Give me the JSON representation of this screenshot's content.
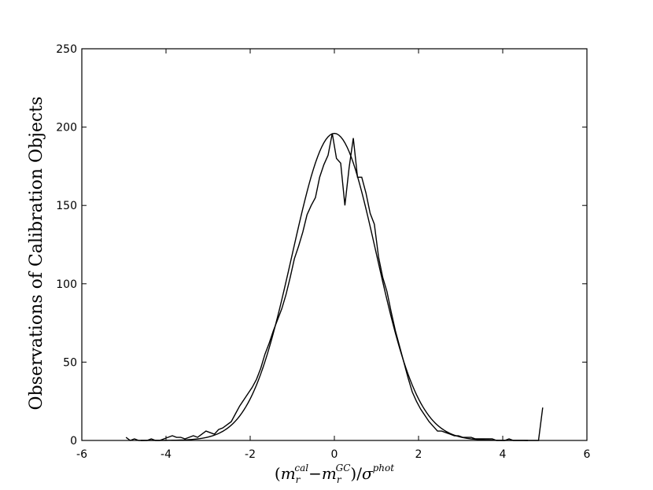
{
  "chart_data": {
    "type": "line",
    "title": "",
    "xlabel": "(m_r^cal − m_r^GC) / σ^phot",
    "xlabel_parts": {
      "open": "(",
      "m1": "m",
      "m1_sub": "r",
      "m1_sup": "cal",
      "minus": "−",
      "m2": "m",
      "m2_sub": "r",
      "m2_sup": "GC",
      "close": ")",
      "slash": "/",
      "sigma": "σ",
      "sigma_sup": "phot"
    },
    "ylabel": "Observations of Calibration Objects",
    "xlim": [
      -6,
      6
    ],
    "ylim": [
      0,
      250
    ],
    "xticks": [
      -6,
      -4,
      -2,
      0,
      2,
      4,
      6
    ],
    "xtick_labels": [
      "-6",
      "-4",
      "-2",
      "0",
      "2",
      "4",
      "6"
    ],
    "yticks": [
      0,
      50,
      100,
      150,
      200,
      250
    ],
    "ytick_labels": [
      "0",
      "50",
      "100",
      "150",
      "200",
      "250"
    ],
    "grid": false,
    "series": [
      {
        "kind": "histogram",
        "x": [
          -4.95,
          -4.85,
          -4.75,
          -4.65,
          -4.55,
          -4.45,
          -4.35,
          -4.25,
          -4.15,
          -4.05,
          -3.95,
          -3.85,
          -3.75,
          -3.65,
          -3.55,
          -3.45,
          -3.35,
          -3.25,
          -3.15,
          -3.05,
          -2.95,
          -2.85,
          -2.75,
          -2.65,
          -2.55,
          -2.45,
          -2.35,
          -2.25,
          -2.15,
          -2.05,
          -1.95,
          -1.85,
          -1.75,
          -1.65,
          -1.55,
          -1.45,
          -1.35,
          -1.25,
          -1.15,
          -1.05,
          -0.95,
          -0.85,
          -0.75,
          -0.65,
          -0.55,
          -0.45,
          -0.35,
          -0.25,
          -0.15,
          -0.05,
          0.05,
          0.15,
          0.25,
          0.35,
          0.45,
          0.55,
          0.65,
          0.75,
          0.85,
          0.95,
          1.05,
          1.15,
          1.25,
          1.35,
          1.45,
          1.55,
          1.65,
          1.75,
          1.85,
          1.95,
          2.05,
          2.15,
          2.25,
          2.35,
          2.45,
          2.55,
          2.65,
          2.75,
          2.85,
          2.95,
          3.05,
          3.15,
          3.25,
          3.35,
          3.45,
          3.55,
          3.65,
          3.75,
          3.85,
          3.95,
          4.05,
          4.15,
          4.25,
          4.35,
          4.45,
          4.55,
          4.65,
          4.75,
          4.85,
          4.95
        ],
        "y": [
          2,
          0,
          1,
          0,
          0,
          0,
          1,
          0,
          0,
          1,
          2,
          3,
          2,
          2,
          1,
          2,
          3,
          2,
          4,
          6,
          5,
          4,
          7,
          8,
          10,
          12,
          17,
          22,
          26,
          30,
          34,
          39,
          46,
          55,
          62,
          70,
          77,
          84,
          93,
          104,
          116,
          124,
          133,
          144,
          150,
          155,
          168,
          176,
          182,
          196,
          180,
          177,
          150,
          174,
          193,
          168,
          168,
          158,
          145,
          138,
          117,
          104,
          95,
          82,
          70,
          60,
          50,
          40,
          31,
          25,
          20,
          16,
          12,
          9,
          6,
          6,
          5,
          4,
          3,
          3,
          2,
          2,
          2,
          1,
          1,
          1,
          1,
          1,
          0,
          0,
          0,
          1,
          0,
          0,
          0,
          0,
          0,
          0,
          0,
          21
        ]
      },
      {
        "kind": "gaussian-fit",
        "amplitude": 196,
        "mean": 0,
        "sigma": 1.0
      }
    ]
  }
}
